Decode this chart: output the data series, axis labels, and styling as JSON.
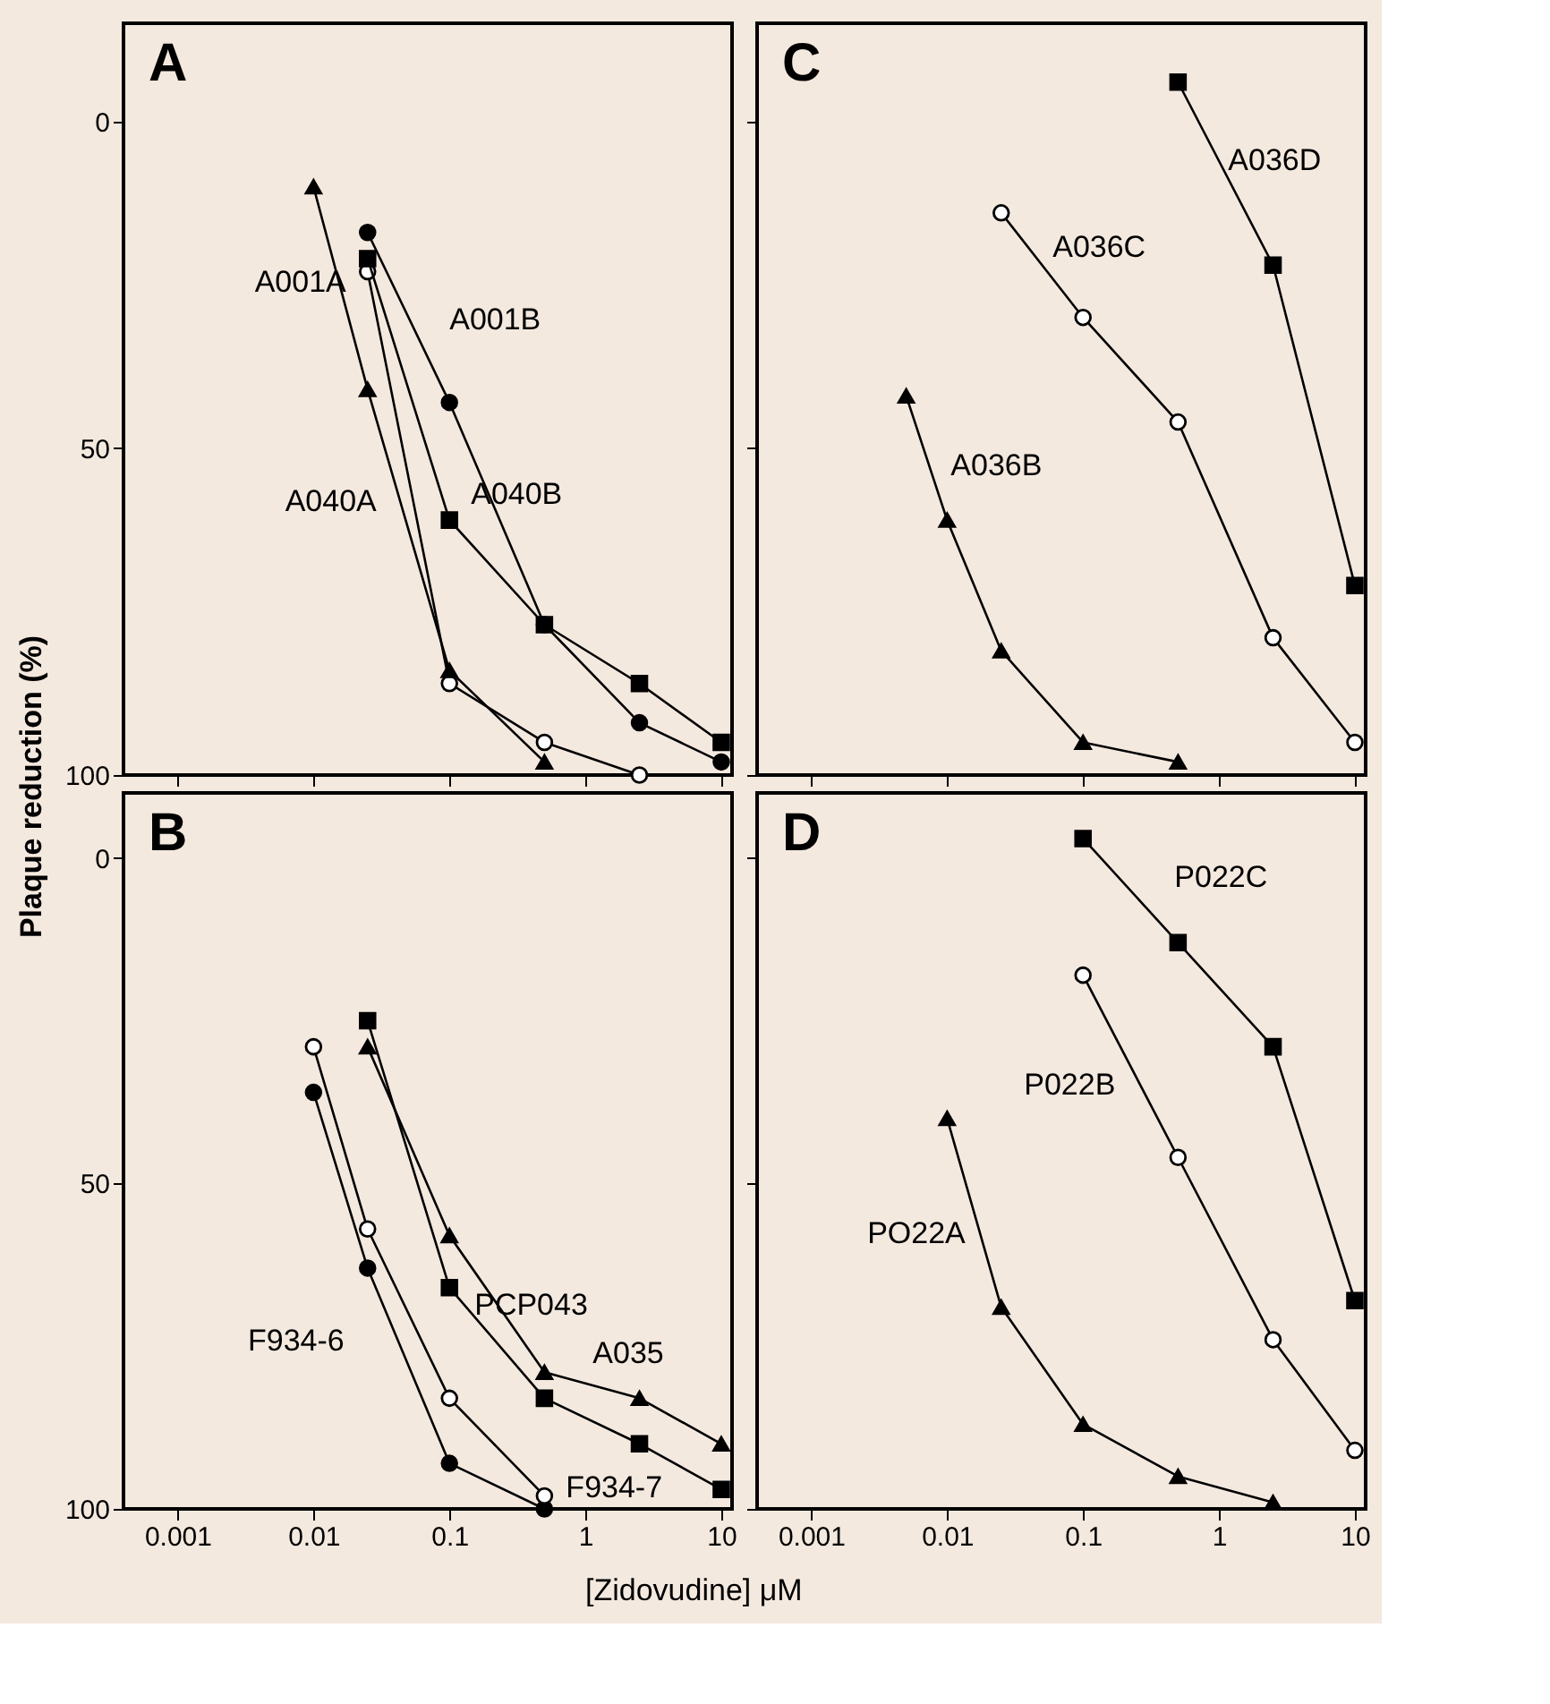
{
  "chart_data": [
    {
      "type": "line",
      "title": "A",
      "ylabel": "Plaque reduction (%)",
      "xlim": [
        0.0004,
        12
      ],
      "ylim": [
        100,
        -15
      ],
      "xticks": [
        0.001,
        0.01,
        0.1,
        1,
        10
      ],
      "yticks": [
        0,
        50,
        100
      ],
      "log": "x",
      "tick_labels": "y",
      "line_style": "solid",
      "series": [
        {
          "name": "A001A",
          "color": "#000000",
          "marker": "circle",
          "x": [
            0.025,
            0.1,
            0.5,
            2.5
          ],
          "values": [
            23,
            86,
            95,
            100
          ]
        },
        {
          "name": "A001B",
          "color": "#000000",
          "marker": "circle",
          "x": [
            0.025,
            0.1,
            0.5,
            2.5,
            10
          ],
          "values": [
            17,
            43,
            77,
            92,
            98
          ]
        },
        {
          "name": "A040A",
          "color": "#000000",
          "marker": "triangle",
          "x": [
            0.01,
            0.025,
            0.1,
            0.5
          ],
          "values": [
            10,
            41,
            84,
            98
          ]
        },
        {
          "name": "A040B",
          "color": "#000000",
          "marker": "square",
          "x": [
            0.025,
            0.1,
            0.5,
            2.5,
            10
          ],
          "values": [
            21,
            61,
            77,
            86,
            95
          ]
        }
      ]
    },
    {
      "type": "line",
      "title": "C",
      "xlim": [
        0.0004,
        12
      ],
      "ylim": [
        100,
        -15
      ],
      "xticks": [
        0.001,
        0.01,
        0.1,
        1,
        10
      ],
      "yticks": [
        0,
        50,
        100
      ],
      "log": "x",
      "tick_labels": false,
      "line_style": "solid",
      "series": [
        {
          "name": "A036B",
          "color": "#000000",
          "marker": "triangle",
          "x": [
            0.005,
            0.01,
            0.025,
            0.1,
            0.5
          ],
          "values": [
            42,
            61,
            81,
            95,
            98
          ]
        },
        {
          "name": "A036C",
          "color": "#000000",
          "marker": "circle",
          "x": [
            0.025,
            0.1,
            0.5,
            2.5,
            10
          ],
          "values": [
            14,
            30,
            46,
            79,
            95
          ]
        },
        {
          "name": "A036D",
          "color": "#000000",
          "marker": "square",
          "x": [
            0.5,
            2.5,
            10
          ],
          "values": [
            -6,
            22,
            71
          ]
        }
      ]
    },
    {
      "type": "line",
      "title": "B",
      "xlabel": null,
      "xlim": [
        0.0004,
        12
      ],
      "ylim": [
        100,
        -10
      ],
      "xticks": [
        0.001,
        0.01,
        0.1,
        1,
        10
      ],
      "yticks": [
        0,
        50,
        100
      ],
      "log": "x",
      "line_style": "solid",
      "series": [
        {
          "name": "F934-6",
          "color": "#000000",
          "marker": "circle",
          "x": [
            0.01,
            0.025,
            0.1,
            0.5
          ],
          "values": [
            36,
            63,
            93,
            100
          ]
        },
        {
          "name": "F934-7",
          "color": "#000000",
          "marker": "circle",
          "x": [
            0.01,
            0.025,
            0.1,
            0.5
          ],
          "values": [
            29,
            57,
            83,
            98
          ]
        },
        {
          "name": "PCP043",
          "color": "#000000",
          "marker": "square",
          "x": [
            0.025,
            0.1,
            0.5,
            2.5,
            10
          ],
          "values": [
            25,
            66,
            83,
            90,
            97
          ]
        },
        {
          "name": "A035",
          "color": "#000000",
          "marker": "triangle",
          "x": [
            0.025,
            0.1,
            0.5,
            2.5,
            10
          ],
          "values": [
            29,
            58,
            79,
            83,
            90
          ]
        }
      ]
    },
    {
      "type": "line",
      "title": "D",
      "xlabel": "[Zidovudine] μM",
      "xlim": [
        0.0004,
        12
      ],
      "ylim": [
        100,
        -10
      ],
      "xticks": [
        0.001,
        0.01,
        0.1,
        1,
        10
      ],
      "yticks": [
        0,
        50,
        100
      ],
      "log": "x",
      "tick_labels": "x",
      "line_style": "solid",
      "series": [
        {
          "name": "PO22A",
          "color": "#000000",
          "marker": "triangle",
          "x": [
            0.01,
            0.025,
            0.1,
            0.5,
            2.5
          ],
          "values": [
            40,
            69,
            87,
            95,
            99
          ]
        },
        {
          "name": "P022B",
          "color": "#000000",
          "marker": "circle",
          "x": [
            0.1,
            0.5,
            2.5,
            10
          ],
          "values": [
            18,
            46,
            74,
            91
          ]
        },
        {
          "name": "P022C",
          "color": "#000000",
          "marker": "square",
          "x": [
            0.1,
            0.5,
            2.5,
            10
          ],
          "values": [
            -3,
            13,
            29,
            68
          ]
        }
      ]
    }
  ]
}
